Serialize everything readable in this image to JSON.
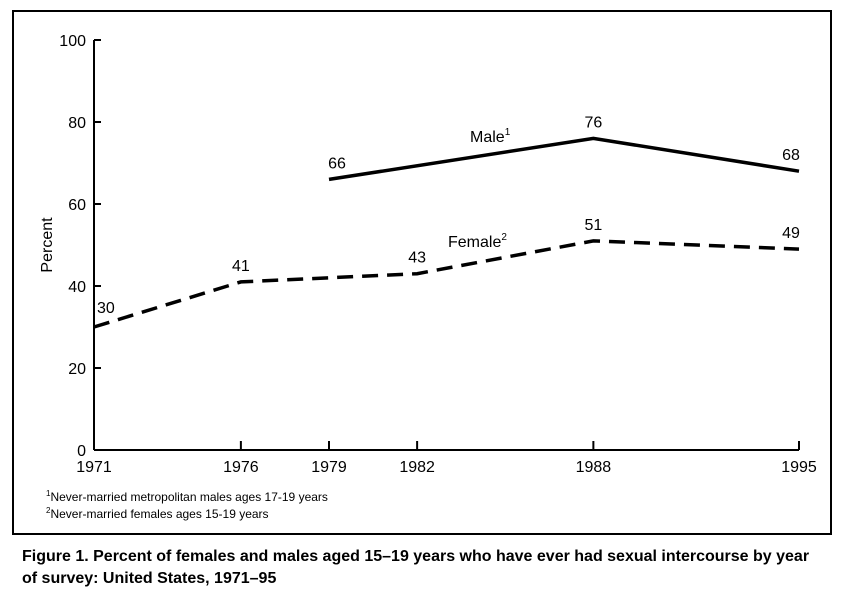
{
  "chart_data": {
    "type": "line",
    "ylabel": "Percent",
    "xlabel": "",
    "ylim": [
      0,
      100
    ],
    "yticks": [
      0,
      20,
      40,
      60,
      80,
      100
    ],
    "xticks": [
      1971,
      1976,
      1979,
      1982,
      1988,
      1995
    ],
    "xlim": [
      1971,
      1995
    ],
    "grid": false,
    "series": [
      {
        "name": "Male",
        "name_sup": "1",
        "style": "solid",
        "x": [
          1979,
          1988,
          1995
        ],
        "y": [
          66,
          76,
          68
        ],
        "labels": [
          "66",
          "76",
          "68"
        ]
      },
      {
        "name": "Female",
        "name_sup": "2",
        "style": "dashed",
        "x": [
          1971,
          1976,
          1979,
          1982,
          1988,
          1995
        ],
        "y": [
          30,
          41,
          42,
          43,
          51,
          49
        ],
        "labels": [
          "30",
          "41",
          "",
          "43",
          "51",
          "49"
        ]
      }
    ]
  },
  "footnotes": [
    {
      "sup": "1",
      "text": "Never-married metropolitan males ages 17-19 years"
    },
    {
      "sup": "2",
      "text": "Never-married females ages 15-19 years"
    }
  ],
  "caption": "Figure 1. Percent of females and males aged 15–19 years who have ever had sexual intercourse by year of survey: United States, 1971–95"
}
